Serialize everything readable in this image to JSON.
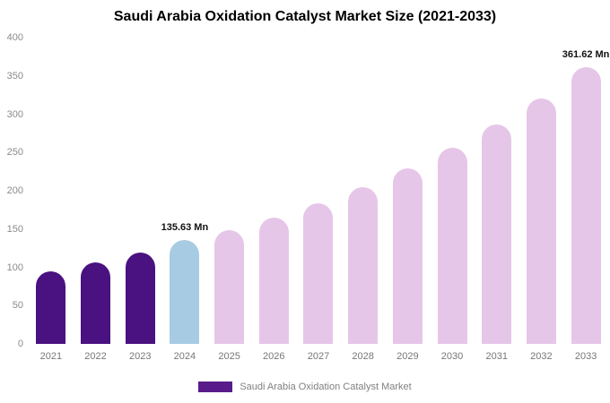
{
  "title": "Saudi Arabia Oxidation Catalyst Market Size (2021-2033)",
  "chart_data": {
    "type": "bar",
    "title": "Saudi Arabia Oxidation Catalyst Market Size (2021-2033)",
    "categories": [
      "2021",
      "2022",
      "2023",
      "2024",
      "2025",
      "2026",
      "2027",
      "2028",
      "2029",
      "2030",
      "2031",
      "2032",
      "2033"
    ],
    "values": [
      95,
      106,
      119,
      135.63,
      148,
      165,
      184,
      205,
      229,
      256,
      286,
      320,
      361.62
    ],
    "xlabel": "",
    "ylabel": "",
    "ylim": [
      0,
      400
    ],
    "yticks": [
      0,
      50,
      100,
      150,
      200,
      250,
      300,
      350,
      400
    ],
    "grid": false,
    "legend_position": "bottom",
    "bar_colors": [
      "#4a1180",
      "#4a1180",
      "#4a1180",
      "#a7cbe2",
      "#e6c6e8",
      "#e6c6e8",
      "#e6c6e8",
      "#e6c6e8",
      "#e6c6e8",
      "#e6c6e8",
      "#e6c6e8",
      "#e6c6e8",
      "#e6c6e8"
    ],
    "annotations": [
      {
        "index": 3,
        "text": "135.63 Mn"
      },
      {
        "index": 12,
        "text": "361.62 Mn"
      }
    ]
  },
  "legend": {
    "label": "Saudi Arabia Oxidation Catalyst Market",
    "swatch_color": "#5a1b8a"
  }
}
